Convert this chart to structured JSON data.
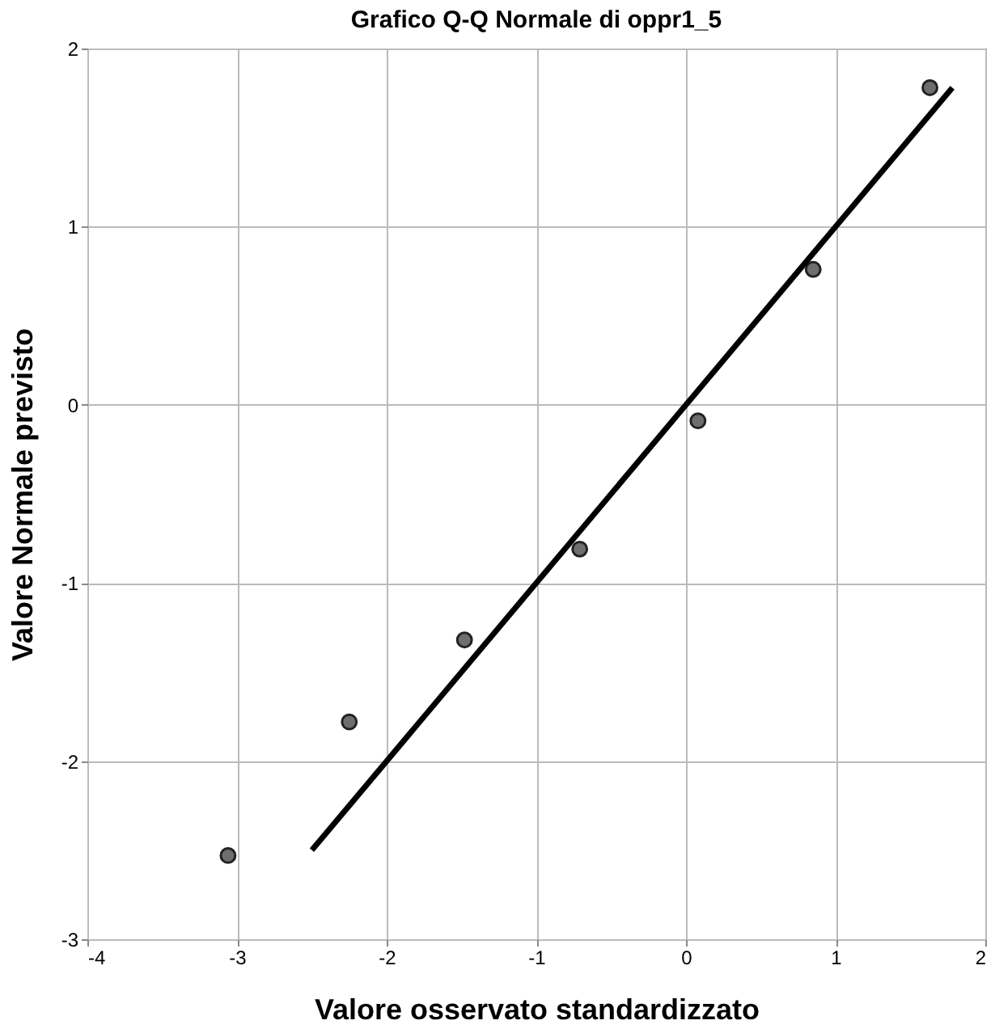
{
  "chart_data": {
    "type": "scatter",
    "title": "Grafico Q-Q Normale di oppr1_5",
    "xlabel": "Valore osservato standardizzato",
    "ylabel": "Valore Normale previsto",
    "series": [
      {
        "color": "#6e6e6e",
        "marker": "circle",
        "x": [
          -3.06,
          -2.25,
          -1.48,
          -0.71,
          0.08,
          0.85,
          1.63
        ],
        "values": [
          -2.53,
          -1.78,
          -1.32,
          -0.81,
          -0.09,
          0.76,
          1.78
        ]
      },
      {
        "type": "line",
        "color": "#000000",
        "x": [
          -2.5,
          1.78
        ],
        "values": [
          -2.5,
          1.78
        ]
      }
    ],
    "xlim": [
      -4,
      2
    ],
    "xticks": [
      -4,
      -3,
      -2,
      -1,
      0,
      1,
      2
    ],
    "ylim": [
      -3,
      2
    ],
    "yticks": [
      -3,
      -2,
      -1,
      0,
      1,
      2
    ],
    "grid": true
  }
}
